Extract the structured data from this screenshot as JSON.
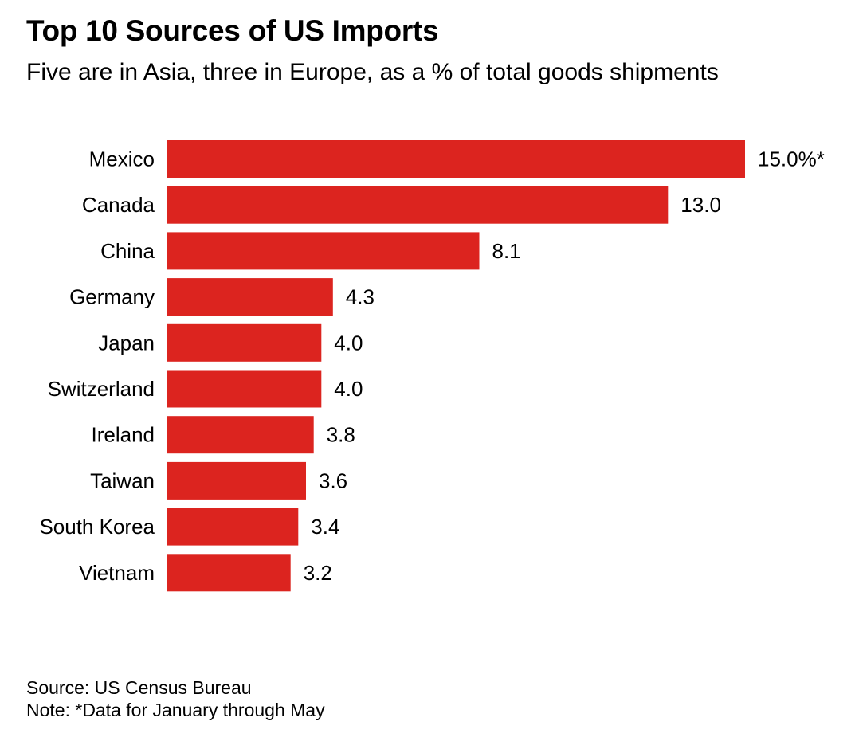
{
  "header": {
    "title": "Top 10 Sources of US Imports",
    "subtitle": "Five are in Asia, three in Europe, as a % of total goods shipments"
  },
  "footer": {
    "source": "Source: US Census Bureau",
    "note": "Note: *Data for January through May"
  },
  "colors": {
    "bar": "#dc241f",
    "text": "#000000",
    "background": "#ffffff"
  },
  "chart_data": {
    "type": "bar",
    "orientation": "horizontal",
    "title": "Top 10 Sources of US Imports",
    "subtitle": "Five are in Asia, three in Europe, as a % of total goods shipments",
    "categories": [
      "Mexico",
      "Canada",
      "China",
      "Germany",
      "Japan",
      "Switzerland",
      "Ireland",
      "Taiwan",
      "South Korea",
      "Vietnam"
    ],
    "values": [
      15.0,
      13.0,
      8.1,
      4.3,
      4.0,
      4.0,
      3.8,
      3.6,
      3.4,
      3.2
    ],
    "value_labels": [
      "15.0%*",
      "13.0",
      "8.1",
      "4.3",
      "4.0",
      "4.0",
      "3.8",
      "3.6",
      "3.4",
      "3.2"
    ],
    "xlim": [
      0,
      15
    ],
    "grid": false,
    "legend": "none"
  }
}
